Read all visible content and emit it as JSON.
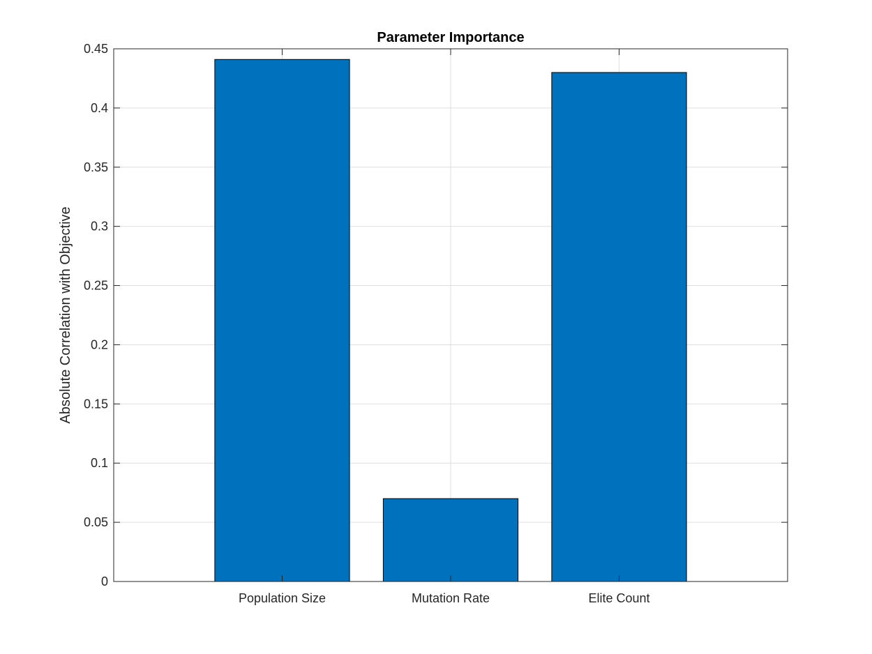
{
  "chart_data": {
    "type": "bar",
    "title": "Parameter Importance",
    "xlabel": "",
    "ylabel": "Absolute Correlation with Objective",
    "categories": [
      "Population Size",
      "Mutation Rate",
      "Elite Count"
    ],
    "values": [
      0.441,
      0.07,
      0.43
    ],
    "ylim": [
      0,
      0.45
    ],
    "yticks": [
      0,
      0.05,
      0.1,
      0.15,
      0.2,
      0.25,
      0.3,
      0.35,
      0.4,
      0.45
    ],
    "ytick_labels": [
      "0",
      "0.05",
      "0.1",
      "0.15",
      "0.2",
      "0.25",
      "0.3",
      "0.35",
      "0.4",
      "0.45"
    ],
    "grid": true,
    "bar_color": "#0072BD",
    "legend": "none"
  }
}
